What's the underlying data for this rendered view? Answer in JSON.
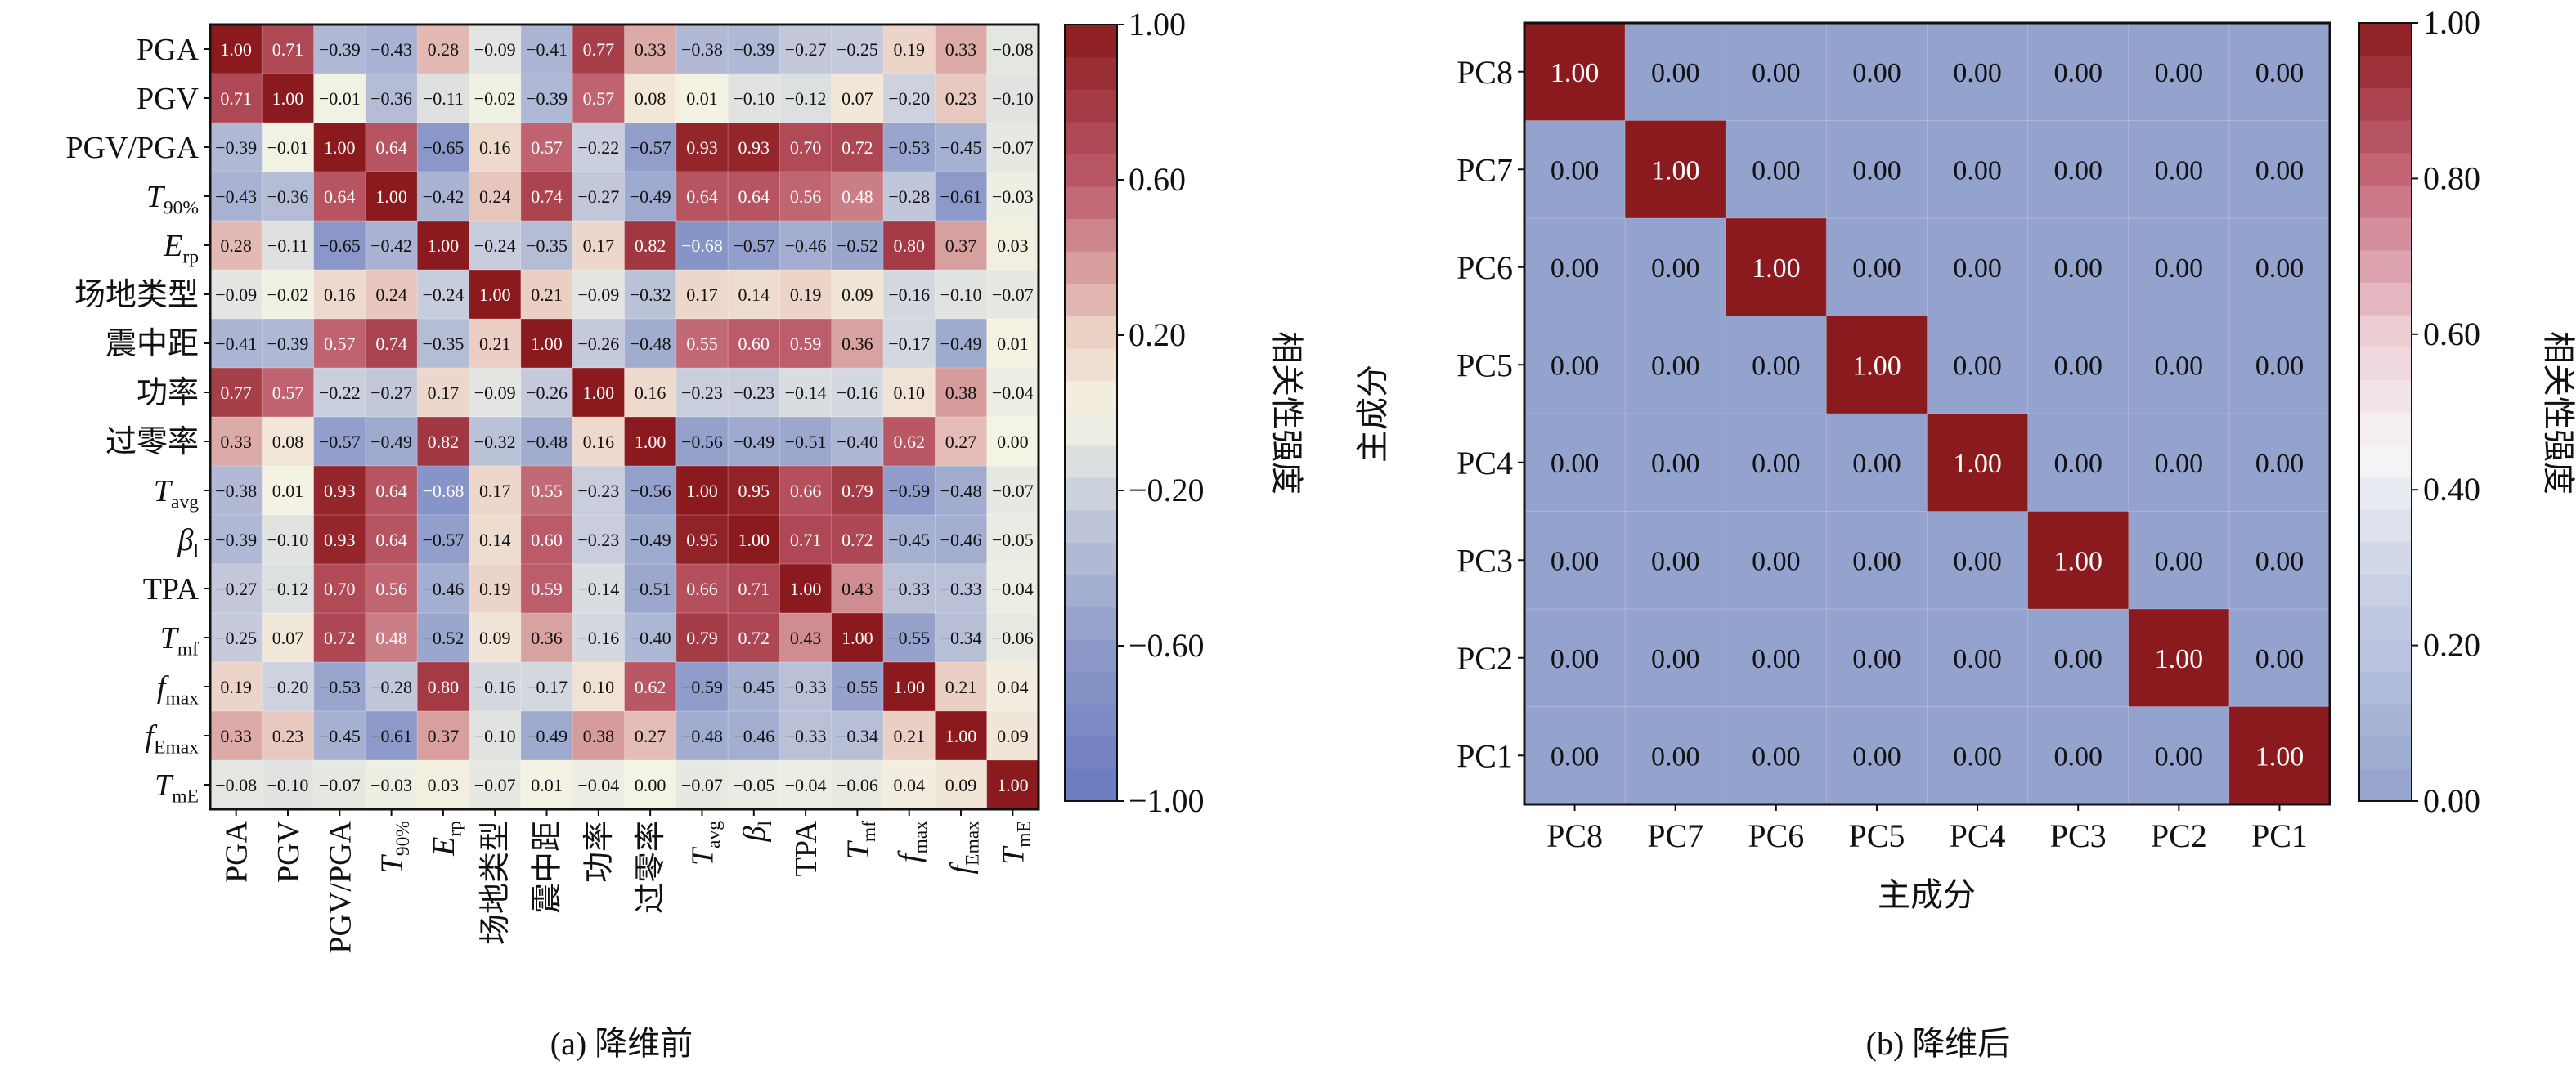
{
  "chart_data": [
    {
      "type": "heatmap",
      "caption": "(a) 降维前",
      "colorbar_label": "相关性强度",
      "colorbar_ticks": [
        "1.00",
        "0.60",
        "0.20",
        "−0.20",
        "−0.60",
        "−1.00"
      ],
      "colorbar_tick_values": [
        1.0,
        0.6,
        0.2,
        -0.2,
        -0.6,
        -1.0
      ],
      "vlim": [
        -1,
        1
      ],
      "colormap": {
        "low": "#6a78bf",
        "mid": "#f4f4e4",
        "high": "#8b1a1e"
      },
      "labels": [
        {
          "main": "PGA",
          "sub": "",
          "italic": false
        },
        {
          "main": "PGV",
          "sub": "",
          "italic": false
        },
        {
          "main": "PGV/PGA",
          "sub": "",
          "italic": false
        },
        {
          "main": "T",
          "sub": "90%",
          "italic": true
        },
        {
          "main": "E",
          "sub": "rp",
          "italic": true
        },
        {
          "main": "场地类型",
          "sub": "",
          "italic": false
        },
        {
          "main": "震中距",
          "sub": "",
          "italic": false
        },
        {
          "main": "功率",
          "sub": "",
          "italic": false
        },
        {
          "main": "过零率",
          "sub": "",
          "italic": false
        },
        {
          "main": "T",
          "sub": "avg",
          "italic": true
        },
        {
          "main": "β",
          "sub": "l",
          "italic": true
        },
        {
          "main": "TPA",
          "sub": "",
          "italic": false
        },
        {
          "main": "T",
          "sub": "mf",
          "italic": true
        },
        {
          "main": "f",
          "sub": "max",
          "italic": true
        },
        {
          "main": "f",
          "sub": "Emax",
          "italic": true
        },
        {
          "main": "T",
          "sub": "mE",
          "italic": true
        }
      ],
      "values": [
        [
          1.0,
          0.71,
          -0.39,
          -0.43,
          0.28,
          -0.09,
          -0.41,
          0.77,
          0.33,
          -0.38,
          -0.39,
          -0.27,
          -0.25,
          0.19,
          0.33,
          -0.08
        ],
        [
          0.71,
          1.0,
          -0.01,
          -0.36,
          -0.11,
          -0.02,
          -0.39,
          0.57,
          0.08,
          0.01,
          -0.1,
          -0.12,
          0.07,
          -0.2,
          0.23,
          -0.1
        ],
        [
          -0.39,
          -0.01,
          1.0,
          0.64,
          -0.65,
          0.16,
          0.57,
          -0.22,
          -0.57,
          0.93,
          0.93,
          0.7,
          0.72,
          -0.53,
          -0.45,
          -0.07
        ],
        [
          -0.43,
          -0.36,
          0.64,
          1.0,
          -0.42,
          0.24,
          0.74,
          -0.27,
          -0.49,
          0.64,
          0.64,
          0.56,
          0.48,
          -0.28,
          -0.61,
          -0.03
        ],
        [
          0.28,
          -0.11,
          -0.65,
          -0.42,
          1.0,
          -0.24,
          -0.35,
          0.17,
          0.82,
          -0.68,
          -0.57,
          -0.46,
          -0.52,
          0.8,
          0.37,
          0.03
        ],
        [
          -0.09,
          -0.02,
          0.16,
          0.24,
          -0.24,
          1.0,
          0.21,
          -0.09,
          -0.32,
          0.17,
          0.14,
          0.19,
          0.09,
          -0.16,
          -0.1,
          -0.07
        ],
        [
          -0.41,
          -0.39,
          0.57,
          0.74,
          -0.35,
          0.21,
          1.0,
          -0.26,
          -0.48,
          0.55,
          0.6,
          0.59,
          0.36,
          -0.17,
          -0.49,
          0.01
        ],
        [
          0.77,
          0.57,
          -0.22,
          -0.27,
          0.17,
          -0.09,
          -0.26,
          1.0,
          0.16,
          -0.23,
          -0.23,
          -0.14,
          -0.16,
          0.1,
          0.38,
          -0.04
        ],
        [
          0.33,
          0.08,
          -0.57,
          -0.49,
          0.82,
          -0.32,
          -0.48,
          0.16,
          1.0,
          -0.56,
          -0.49,
          -0.51,
          -0.4,
          0.62,
          0.27,
          0.0
        ],
        [
          -0.38,
          0.01,
          0.93,
          0.64,
          -0.68,
          0.17,
          0.55,
          -0.23,
          -0.56,
          1.0,
          0.95,
          0.66,
          0.79,
          -0.59,
          -0.48,
          -0.07
        ],
        [
          -0.39,
          -0.1,
          0.93,
          0.64,
          -0.57,
          0.14,
          0.6,
          -0.23,
          -0.49,
          0.95,
          1.0,
          0.71,
          0.72,
          -0.45,
          -0.46,
          -0.05
        ],
        [
          -0.27,
          -0.12,
          0.7,
          0.56,
          -0.46,
          0.19,
          0.59,
          -0.14,
          -0.51,
          0.66,
          0.71,
          1.0,
          0.43,
          -0.33,
          -0.33,
          -0.04
        ],
        [
          -0.25,
          0.07,
          0.72,
          0.48,
          -0.52,
          0.09,
          0.36,
          -0.16,
          -0.4,
          0.79,
          0.72,
          0.43,
          1.0,
          -0.55,
          -0.34,
          -0.06
        ],
        [
          0.19,
          -0.2,
          -0.53,
          -0.28,
          0.8,
          -0.16,
          -0.17,
          0.1,
          0.62,
          -0.59,
          -0.45,
          -0.33,
          -0.55,
          1.0,
          0.21,
          0.04
        ],
        [
          0.33,
          0.23,
          -0.45,
          -0.61,
          0.37,
          -0.1,
          -0.49,
          0.38,
          0.27,
          -0.48,
          -0.46,
          -0.33,
          -0.34,
          0.21,
          1.0,
          0.09
        ],
        [
          -0.08,
          -0.1,
          -0.07,
          -0.03,
          0.03,
          -0.07,
          0.01,
          -0.04,
          0.0,
          -0.07,
          -0.05,
          -0.04,
          -0.06,
          0.04,
          0.09,
          1.0
        ]
      ]
    },
    {
      "type": "heatmap",
      "caption": "(b) 降维后",
      "xlabel": "主成分",
      "ylabel": "主成分",
      "colorbar_label": "相关性强度",
      "colorbar_ticks": [
        "1.00",
        "0.80",
        "0.60",
        "0.40",
        "0.20",
        "0.00"
      ],
      "colorbar_tick_values": [
        1.0,
        0.8,
        0.6,
        0.4,
        0.2,
        0.0
      ],
      "vlim": [
        0,
        1
      ],
      "colormap": {
        "low": "#94a3cd",
        "mid": "#f7f7f7",
        "high": "#8b1a1e"
      },
      "row_labels": [
        "PC8",
        "PC7",
        "PC6",
        "PC5",
        "PC4",
        "PC3",
        "PC2",
        "PC1"
      ],
      "col_labels": [
        "PC8",
        "PC7",
        "PC6",
        "PC5",
        "PC4",
        "PC3",
        "PC2",
        "PC1"
      ],
      "values": [
        [
          1,
          0,
          0,
          0,
          0,
          0,
          0,
          0
        ],
        [
          0,
          1,
          0,
          0,
          0,
          0,
          0,
          0
        ],
        [
          0,
          0,
          1,
          0,
          0,
          0,
          0,
          0
        ],
        [
          0,
          0,
          0,
          1,
          0,
          0,
          0,
          0
        ],
        [
          0,
          0,
          0,
          0,
          1,
          0,
          0,
          0
        ],
        [
          0,
          0,
          0,
          0,
          0,
          1,
          0,
          0
        ],
        [
          0,
          0,
          0,
          0,
          0,
          0,
          1,
          0
        ],
        [
          0,
          0,
          0,
          0,
          0,
          0,
          0,
          1
        ]
      ]
    }
  ]
}
